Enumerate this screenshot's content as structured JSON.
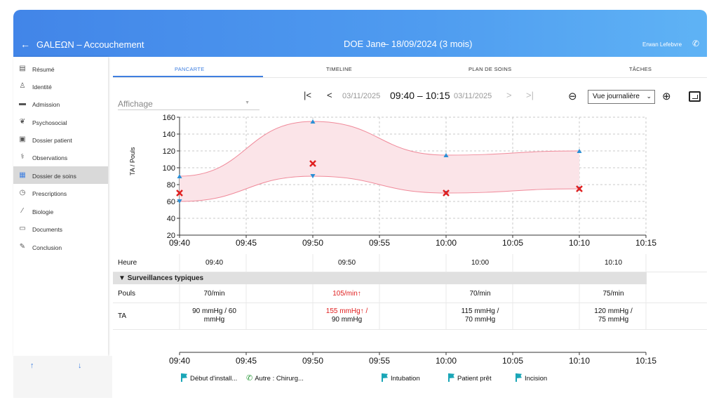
{
  "header": {
    "app_title": "GALEΩN – Accouchement",
    "patient_name": "DOE Jane",
    "patient_date": "– 18/09/2024 (3 mois)",
    "user_name": "Erwan Lefebvre"
  },
  "sidebar": {
    "items": [
      {
        "label": "Résumé",
        "icon": "clipboard-icon"
      },
      {
        "label": "Identité",
        "icon": "person-icon"
      },
      {
        "label": "Admission",
        "icon": "bed-icon"
      },
      {
        "label": "Psychosocial",
        "icon": "psychosocial-icon"
      },
      {
        "label": "Dossier patient",
        "icon": "folder-icon"
      },
      {
        "label": "Observations",
        "icon": "stethoscope-icon"
      },
      {
        "label": "Dossier de soins",
        "icon": "care-folder-icon"
      },
      {
        "label": "Prescriptions",
        "icon": "clock-icon"
      },
      {
        "label": "Biologie",
        "icon": "pipette-icon"
      },
      {
        "label": "Documents",
        "icon": "documents-icon"
      },
      {
        "label": "Conclusion",
        "icon": "note-icon"
      }
    ],
    "active_index": 6
  },
  "tabs": [
    "PANCARTE",
    "TIMELINE",
    "PLAN DE SOINS",
    "TÂCHES"
  ],
  "toolbar": {
    "affichage_label": "Affichage",
    "date_prev": "03/11/2025",
    "time_range": "09:40 – 10:15",
    "date_next": "03/11/2025",
    "view_mode": "Vue journalière"
  },
  "chart_data": {
    "type": "line",
    "ylabel": "TA / Pouls",
    "ylim": [
      20,
      160
    ],
    "yticks": [
      "20",
      "40",
      "60",
      "80",
      "100",
      "120",
      "140",
      "160"
    ],
    "xticks": [
      "09:40",
      "09:45",
      "09:50",
      "09:55",
      "10:00",
      "10:05",
      "10:10",
      "10:15"
    ],
    "grid": true,
    "series": [
      {
        "kind": "systolic",
        "color": "#2a8fd6",
        "x": [
          "09:40",
          "09:50",
          "10:00",
          "10:10"
        ],
        "values": [
          90,
          155,
          115,
          120
        ]
      },
      {
        "kind": "diastolic",
        "color": "#2a8fd6",
        "x": [
          "09:40",
          "09:50",
          "10:00",
          "10:10"
        ],
        "values": [
          60,
          90,
          70,
          75
        ]
      },
      {
        "kind": "pulse",
        "color": "#e02020",
        "x": [
          "09:40",
          "09:50",
          "10:00",
          "10:10"
        ],
        "values": [
          70,
          105,
          70,
          75
        ]
      }
    ],
    "band_color": "#fbe4e8"
  },
  "table": {
    "heure_label": "Heure",
    "times": [
      "09:40",
      "09:50",
      "10:00",
      "10:10"
    ],
    "section_title": "Surveillances typiques",
    "pouls_label": "Pouls",
    "pouls": [
      "70/min",
      "105/min↑",
      "70/min",
      "75/min"
    ],
    "ta_label": "TA",
    "ta_line1": [
      "90 mmHg / 60",
      "155 mmHg↑ /",
      "115 mmHg /",
      "120 mmHg /"
    ],
    "ta_line2": [
      "mmHg",
      "90 mmHg",
      "70 mmHg",
      "75 mmHg"
    ]
  },
  "timeline": {
    "xticks": [
      "09:40",
      "09:45",
      "09:50",
      "09:55",
      "10:00",
      "10:05",
      "10:10",
      "10:15"
    ],
    "events": [
      {
        "label": "Début d'install...",
        "icon": "flag-icon"
      },
      {
        "label": "Autre : Chirurg...",
        "icon": "phone-call-icon"
      },
      {
        "label": "Intubation",
        "icon": "flag-icon"
      },
      {
        "label": "Patient prêt",
        "icon": "flag-icon"
      },
      {
        "label": "Incision",
        "icon": "flag-icon"
      }
    ]
  }
}
